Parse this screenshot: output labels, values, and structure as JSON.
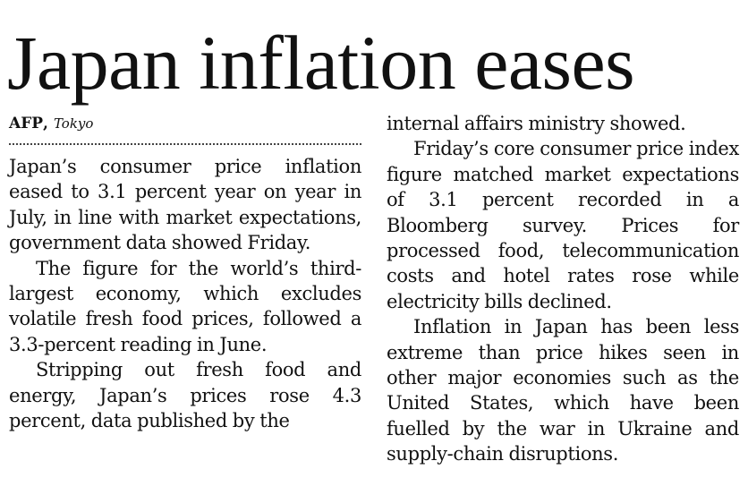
{
  "article": {
    "headline": "Japan inflation eases",
    "byline": {
      "agency": "AFP",
      "separator": ",",
      "location": "Tokyo"
    },
    "column_left": [
      "Japan’s consumer price inflation eased to 3.1 percent year on year in July, in line with market expectations, government data showed Friday.",
      "The figure for the world’s third-largest economy, which excludes volatile fresh food prices, followed a 3.3-percent reading in June.",
      "Stripping out fresh food and energy, Japan’s prices rose 4.3 percent, data published by the"
    ],
    "column_right": [
      "internal affairs ministry showed.",
      "Friday’s core consumer price index figure matched market expectations of 3.1 percent recorded in a Bloomberg survey. Prices for processed food, telecommunication costs and hotel rates rose while electricity bills declined.",
      "Inflation in Japan has been less extreme than price hikes seen in other major economies such as the United States, which have been fuelled by the war in Ukraine and supply-chain disruptions."
    ]
  }
}
